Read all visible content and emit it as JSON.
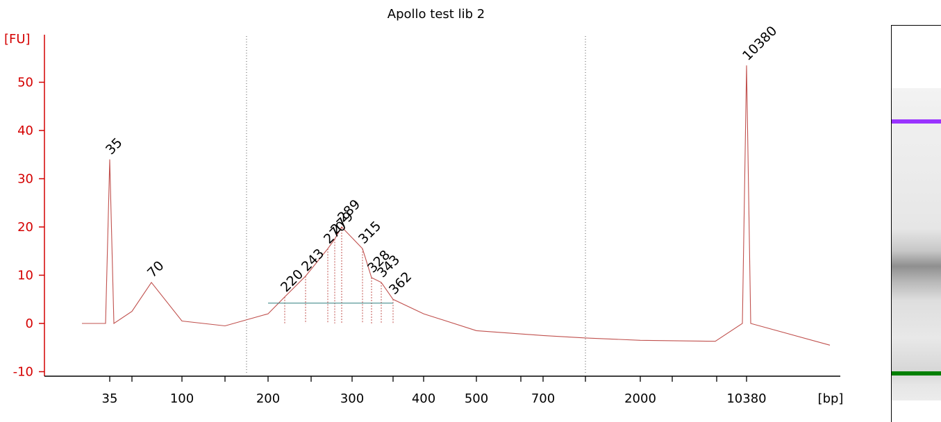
{
  "chart_data": {
    "type": "line",
    "title": "Apollo test lib 2",
    "ylabel": "[FU]",
    "xlabel": "[bp]",
    "ylim": [
      -11,
      60
    ],
    "yticks": [
      -10,
      0,
      10,
      20,
      30,
      40,
      50
    ],
    "x_scale": "categorical sizing ladder",
    "x_ticks": [
      "35",
      "100",
      "200",
      "300",
      "400",
      "500",
      "700",
      "2000",
      "10380"
    ],
    "grid": "two vertical dotted lines marking the region of interest",
    "series": [
      {
        "color": "#c0504d",
        "x": [
          35,
          50,
          70,
          100,
          150,
          200,
          220,
          243,
          270,
          279,
          289,
          315,
          328,
          343,
          362,
          400,
          500,
          700,
          1000,
          2000,
          5000,
          10380,
          15000
        ],
        "y": [
          34,
          2.5,
          8.5,
          0.5,
          -0.5,
          2,
          5.5,
          9.8,
          15.5,
          17.5,
          20,
          15.5,
          9.5,
          8.5,
          5,
          2,
          -1.5,
          -2.5,
          -3,
          -3.5,
          -3.7,
          53.5,
          -4.5
        ]
      }
    ],
    "peaks": [
      {
        "label": "35",
        "color": "#007f00",
        "x": 35,
        "y": 34
      },
      {
        "label": "70",
        "color": "#000000",
        "x": 70,
        "y": 8.5
      },
      {
        "label": "220",
        "color": "#000000",
        "x": 220,
        "y": 5.5
      },
      {
        "label": "243",
        "color": "#000000",
        "x": 243,
        "y": 9.8
      },
      {
        "label": "270",
        "color": "#000000",
        "x": 270,
        "y": 15.5
      },
      {
        "label": "279",
        "color": "#000000",
        "x": 279,
        "y": 17.5
      },
      {
        "label": "289",
        "color": "#000000",
        "x": 289,
        "y": 20
      },
      {
        "label": "315",
        "color": "#000000",
        "x": 315,
        "y": 15.5
      },
      {
        "label": "328",
        "color": "#000000",
        "x": 328,
        "y": 9.5
      },
      {
        "label": "343",
        "color": "#000000",
        "x": 343,
        "y": 8.5
      },
      {
        "label": "362",
        "color": "#000000",
        "x": 362,
        "y": 5
      },
      {
        "label": "10380",
        "color": "#9933ff",
        "x": 10380,
        "y": 53.5
      }
    ],
    "gel_bands": [
      {
        "name": "upper-marker",
        "color": "#9933ff"
      },
      {
        "name": "lower-marker",
        "color": "#007f00"
      }
    ]
  }
}
